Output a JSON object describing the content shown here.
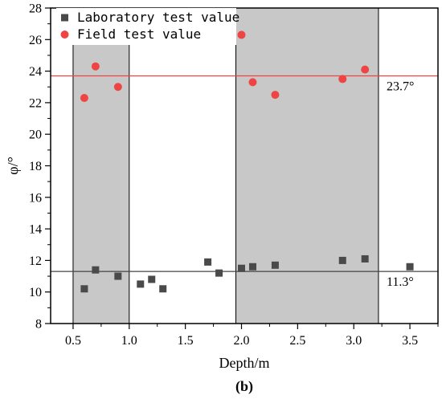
{
  "chart_data": {
    "type": "scatter",
    "xlabel": "Depth/m",
    "ylabel": "φ/°",
    "panel_label_open": "(",
    "panel_label_letter": "b",
    "panel_label_close": ")",
    "xlim": [
      0.3,
      3.75
    ],
    "ylim": [
      8,
      28
    ],
    "xticks": [
      0.5,
      1.0,
      1.5,
      2.0,
      2.5,
      3.0,
      3.5
    ],
    "xtick_labels": [
      "0.5",
      "1.0",
      "1.5",
      "2.0",
      "2.5",
      "3.0",
      "3.5"
    ],
    "yticks": [
      8,
      10,
      12,
      14,
      16,
      18,
      20,
      22,
      24,
      26,
      28
    ],
    "ytick_labels": [
      "8",
      "10",
      "12",
      "14",
      "16",
      "18",
      "20",
      "22",
      "24",
      "26",
      "28"
    ],
    "grid": false,
    "legend_position": "top-left",
    "shaded_ranges": [
      [
        0.5,
        1.0
      ],
      [
        1.95,
        3.22
      ]
    ],
    "shade_color": "#c8c8c8",
    "reference_lines": [
      {
        "y": 23.7,
        "label": "23.7°",
        "color": "#ee4444"
      },
      {
        "y": 11.3,
        "label": "11.3°",
        "color": "#444444"
      }
    ],
    "series": [
      {
        "name": "Laboratory test value",
        "marker": "square",
        "color": "#4a4a4a",
        "x": [
          0.6,
          0.7,
          0.9,
          1.1,
          1.2,
          1.3,
          1.7,
          1.8,
          2.0,
          2.1,
          2.3,
          2.9,
          3.1,
          3.5
        ],
        "y": [
          10.2,
          11.4,
          11.0,
          10.5,
          10.8,
          10.2,
          11.9,
          11.2,
          11.5,
          11.6,
          11.7,
          12.0,
          12.1,
          11.6
        ]
      },
      {
        "name": "Field test value",
        "marker": "circle",
        "color": "#ee4444",
        "x": [
          0.6,
          0.7,
          0.9,
          2.0,
          2.1,
          2.3,
          2.9,
          3.1
        ],
        "y": [
          22.3,
          24.3,
          23.0,
          26.3,
          23.3,
          22.5,
          23.5,
          24.1
        ]
      }
    ]
  }
}
